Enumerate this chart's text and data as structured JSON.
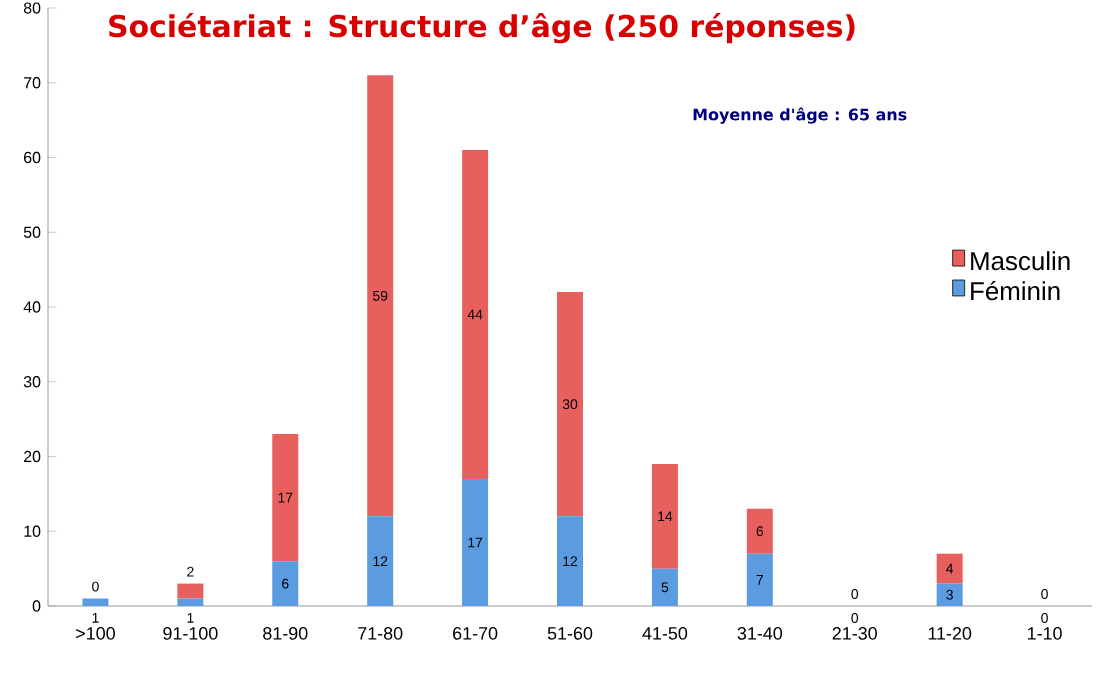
{
  "chart_data": {
    "type": "bar",
    "stacked": true,
    "title": "Sociétariat : Structure d’âge (250 réponses)",
    "annotations": [
      "Moyenne d'âge : 65 ans"
    ],
    "categories": [
      ">100",
      "91-100",
      "81-90",
      "71-80",
      "61-70",
      "51-60",
      "41-50",
      "31-40",
      "21-30",
      "11-20",
      "1-10"
    ],
    "series": [
      {
        "name": "Féminin",
        "color": "#5b9be0",
        "values": [
          1,
          1,
          6,
          12,
          17,
          12,
          5,
          7,
          0,
          3,
          0
        ]
      },
      {
        "name": "Masculin",
        "color": "#e8605e",
        "values": [
          0,
          2,
          17,
          59,
          44,
          30,
          14,
          6,
          0,
          4,
          0
        ]
      }
    ],
    "ylim": [
      0,
      80
    ],
    "yticks": [
      0,
      10,
      20,
      30,
      40,
      50,
      60,
      70,
      80
    ],
    "data_labels": true,
    "legend": "right"
  }
}
